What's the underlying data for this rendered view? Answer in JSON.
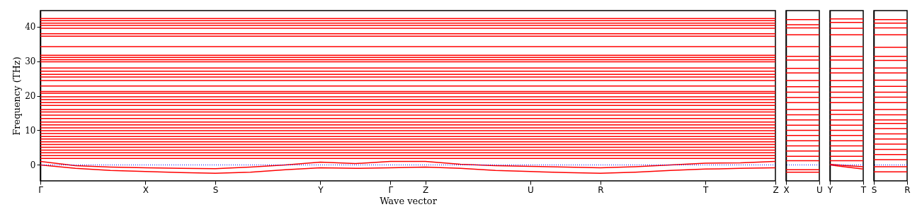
{
  "chart_data": [
    {
      "type": "line",
      "ylabel": "Frequency (THz)",
      "xlabel": "Wave vector",
      "ylim": [
        -4.6,
        44.6
      ],
      "yticks": [
        0,
        10,
        20,
        30,
        40
      ],
      "categories": [
        "Γ",
        null,
        null,
        "X",
        null,
        "S",
        null,
        null,
        "Y",
        null,
        "Γ",
        "Z",
        null,
        null,
        "U",
        null,
        "R",
        null,
        null,
        "T",
        null,
        "Z"
      ],
      "ref_lines": [
        {
          "axis": "y",
          "value": 0,
          "color": "#0000ff",
          "line_style": "dotted"
        }
      ],
      "series": [
        {
          "color": "#ff0000",
          "values": [
            0,
            -1.0,
            -1.6,
            -1.9,
            -2.2,
            -2.4,
            -2.1,
            -1.4,
            -0.8,
            -1.0,
            -0.8,
            -0.6,
            -1.0,
            -1.6,
            -1.9,
            -2.2,
            -2.4,
            -2.1,
            -1.6,
            -1.2,
            -1.0,
            -0.8
          ]
        },
        {
          "color": "#ff0000",
          "values": [
            1.0,
            -0.2,
            -0.6,
            -0.8,
            -1.0,
            -1.1,
            -0.6,
            0,
            0.8,
            0.4,
            1.0,
            1.0,
            0.2,
            -0.2,
            -0.4,
            -0.6,
            -0.8,
            -0.5,
            0,
            0.5,
            0.6,
            1.0
          ]
        },
        {
          "color": "#ff0000",
          "values": [
            42.3,
            42.3,
            42.3,
            42.3,
            42.3,
            42.3,
            42.3,
            42.3,
            42.3,
            42.3,
            42.3,
            42.3,
            42.3,
            42.3,
            42.3,
            42.3,
            42.3,
            42.3,
            42.3,
            42.3,
            42.3,
            42.3
          ]
        },
        {
          "color": "#ff0000",
          "values": [
            41.7,
            41.7,
            41.7,
            41.7,
            41.7,
            41.7,
            41.7,
            41.7,
            41.7,
            41.7,
            41.7,
            41.7,
            41.7,
            41.7,
            41.7,
            41.7,
            41.7,
            41.7,
            41.7,
            41.7,
            41.7,
            41.7
          ]
        },
        {
          "color": "#ff0000",
          "values": [
            41.0,
            41.0,
            41.0,
            41.0,
            41.0,
            41.0,
            41.0,
            41.0,
            41.0,
            41.0,
            41.0,
            41.0,
            41.0,
            41.0,
            41.0,
            41.0,
            41.0,
            41.0,
            41.0,
            41.0,
            41.0,
            41.0
          ]
        },
        {
          "color": "#ff0000",
          "values": [
            40.3,
            40.3,
            40.3,
            40.3,
            40.3,
            40.3,
            40.3,
            40.3,
            40.3,
            40.3,
            40.3,
            40.3,
            40.3,
            40.3,
            40.3,
            40.3,
            40.3,
            40.3,
            40.3,
            40.3,
            40.3,
            40.3
          ]
        },
        {
          "color": "#ff0000",
          "values": [
            39.5,
            39.5,
            39.5,
            39.5,
            39.5,
            39.5,
            39.5,
            39.5,
            39.5,
            39.5,
            39.5,
            39.5,
            39.5,
            39.5,
            39.5,
            39.5,
            39.5,
            39.5,
            39.5,
            39.5,
            39.5,
            39.5
          ]
        },
        {
          "color": "#ff0000",
          "values": [
            37.9,
            37.9,
            37.9,
            37.9,
            37.9,
            37.9,
            37.9,
            37.9,
            37.9,
            37.9,
            37.9,
            37.9,
            37.9,
            37.9,
            37.9,
            37.9,
            37.9,
            37.9,
            37.9,
            37.9,
            37.9,
            37.9
          ]
        },
        {
          "color": "#ff0000",
          "values": [
            37.2,
            37.2,
            37.2,
            37.2,
            37.2,
            37.2,
            37.2,
            37.2,
            37.2,
            37.2,
            37.2,
            37.2,
            37.2,
            37.2,
            37.2,
            37.2,
            37.2,
            37.2,
            37.2,
            37.2,
            37.2,
            37.2
          ]
        },
        {
          "color": "#ff0000",
          "values": [
            34.2,
            34.2,
            34.2,
            34.2,
            34.2,
            34.2,
            34.2,
            34.2,
            34.2,
            34.2,
            34.2,
            34.2,
            34.2,
            34.2,
            34.2,
            34.2,
            34.2,
            34.2,
            34.2,
            34.2,
            34.2,
            34.2
          ]
        },
        {
          "color": "#ff0000",
          "values": [
            31.7,
            31.7,
            31.7,
            31.7,
            31.7,
            31.7,
            31.7,
            31.7,
            31.7,
            31.7,
            31.7,
            31.7,
            31.7,
            31.7,
            31.7,
            31.7,
            31.7,
            31.7,
            31.7,
            31.7,
            31.7,
            31.7
          ]
        },
        {
          "color": "#ff0000",
          "values": [
            31.1,
            31.1,
            31.1,
            31.1,
            31.1,
            31.1,
            31.1,
            31.1,
            31.1,
            31.1,
            31.1,
            31.1,
            31.1,
            31.1,
            31.1,
            31.1,
            31.1,
            31.1,
            31.1,
            31.1,
            31.1,
            31.1
          ]
        },
        {
          "color": "#ff0000",
          "values": [
            30.4,
            30.4,
            30.4,
            30.4,
            30.4,
            30.4,
            30.4,
            30.4,
            30.4,
            30.4,
            30.4,
            30.4,
            30.4,
            30.4,
            30.4,
            30.4,
            30.4,
            30.4,
            30.4,
            30.4,
            30.4,
            30.4
          ]
        },
        {
          "color": "#ff0000",
          "values": [
            29.8,
            29.8,
            29.8,
            29.8,
            29.8,
            29.8,
            29.8,
            29.8,
            29.8,
            29.8,
            29.8,
            29.8,
            29.8,
            29.8,
            29.8,
            29.8,
            29.8,
            29.8,
            29.8,
            29.8,
            29.8,
            29.8
          ]
        },
        {
          "color": "#ff0000",
          "values": [
            28.0,
            28.0,
            28.0,
            28.0,
            28.0,
            28.0,
            28.0,
            28.0,
            28.0,
            28.0,
            28.0,
            28.0,
            28.0,
            28.0,
            28.0,
            28.0,
            28.0,
            28.0,
            28.0,
            28.0,
            28.0,
            28.0
          ]
        },
        {
          "color": "#ff0000",
          "values": [
            27.1,
            27.1,
            27.1,
            27.1,
            27.1,
            27.1,
            27.1,
            27.1,
            27.1,
            27.1,
            27.1,
            27.1,
            27.1,
            27.1,
            27.1,
            27.1,
            27.1,
            27.1,
            27.1,
            27.1,
            27.1,
            27.1
          ]
        },
        {
          "color": "#ff0000",
          "values": [
            26.2,
            26.2,
            26.2,
            26.2,
            26.2,
            26.2,
            26.2,
            26.2,
            26.2,
            26.2,
            26.2,
            26.2,
            26.2,
            26.2,
            26.2,
            26.2,
            26.2,
            26.2,
            26.2,
            26.2,
            26.2,
            26.2
          ]
        },
        {
          "color": "#ff0000",
          "values": [
            25.4,
            25.4,
            25.4,
            25.4,
            25.4,
            25.4,
            25.4,
            25.4,
            25.4,
            25.4,
            25.4,
            25.4,
            25.4,
            25.4,
            25.4,
            25.4,
            25.4,
            25.4,
            25.4,
            25.4,
            25.4,
            25.4
          ]
        },
        {
          "color": "#ff0000",
          "values": [
            24.4,
            24.4,
            24.4,
            24.4,
            24.4,
            24.4,
            24.4,
            24.4,
            24.4,
            24.4,
            24.4,
            24.4,
            24.4,
            24.4,
            24.4,
            24.4,
            24.4,
            24.4,
            24.4,
            24.4,
            24.4,
            24.4
          ]
        },
        {
          "color": "#ff0000",
          "values": [
            22.8,
            22.8,
            22.8,
            22.8,
            22.8,
            22.8,
            22.8,
            22.8,
            22.8,
            22.8,
            22.8,
            22.8,
            22.8,
            22.8,
            22.8,
            22.8,
            22.8,
            22.8,
            22.8,
            22.8,
            22.8,
            22.8
          ]
        },
        {
          "color": "#ff0000",
          "values": [
            21.2,
            21.2,
            21.2,
            21.2,
            21.2,
            21.2,
            21.2,
            21.2,
            21.2,
            21.2,
            21.2,
            21.2,
            21.2,
            21.2,
            21.2,
            21.2,
            21.2,
            21.2,
            21.2,
            21.2,
            21.2,
            21.2
          ]
        },
        {
          "color": "#ff0000",
          "values": [
            20.7,
            20.7,
            20.7,
            20.7,
            20.7,
            20.7,
            20.7,
            20.7,
            20.7,
            20.7,
            20.7,
            20.7,
            20.7,
            20.7,
            20.7,
            20.7,
            20.7,
            20.7,
            20.7,
            20.7,
            20.7,
            20.7
          ]
        },
        {
          "color": "#ff0000",
          "values": [
            19.7,
            19.7,
            19.7,
            19.7,
            19.7,
            19.7,
            19.7,
            19.7,
            19.7,
            19.7,
            19.7,
            19.7,
            19.7,
            19.7,
            19.7,
            19.7,
            19.7,
            19.7,
            19.7,
            19.7,
            19.7,
            19.7
          ]
        },
        {
          "color": "#ff0000",
          "values": [
            18.9,
            18.9,
            18.9,
            18.9,
            18.9,
            18.9,
            18.9,
            18.9,
            18.9,
            18.9,
            18.9,
            18.9,
            18.9,
            18.9,
            18.9,
            18.9,
            18.9,
            18.9,
            18.9,
            18.9,
            18.9,
            18.9
          ]
        },
        {
          "color": "#ff0000",
          "values": [
            18.0,
            18.0,
            18.0,
            18.0,
            18.0,
            18.0,
            18.0,
            18.0,
            18.0,
            18.0,
            18.0,
            18.0,
            18.0,
            18.0,
            18.0,
            18.0,
            18.0,
            18.0,
            18.0,
            18.0,
            18.0,
            18.0
          ]
        },
        {
          "color": "#ff0000",
          "values": [
            17.2,
            17.2,
            17.2,
            17.2,
            17.2,
            17.2,
            17.2,
            17.2,
            17.2,
            17.2,
            17.2,
            17.2,
            17.2,
            17.2,
            17.2,
            17.2,
            17.2,
            17.2,
            17.2,
            17.2,
            17.2,
            17.2
          ]
        },
        {
          "color": "#ff0000",
          "values": [
            16.0,
            16.0,
            16.0,
            16.0,
            16.0,
            16.0,
            16.0,
            16.0,
            16.0,
            16.0,
            16.0,
            16.0,
            16.0,
            16.0,
            16.0,
            16.0,
            16.0,
            16.0,
            16.0,
            16.0,
            16.0,
            16.0
          ]
        },
        {
          "color": "#ff0000",
          "values": [
            15.3,
            15.3,
            15.3,
            15.3,
            15.3,
            15.3,
            15.3,
            15.3,
            15.3,
            15.3,
            15.3,
            15.3,
            15.3,
            15.3,
            15.3,
            15.3,
            15.3,
            15.3,
            15.3,
            15.3,
            15.3,
            15.3
          ]
        },
        {
          "color": "#ff0000",
          "values": [
            14.4,
            14.4,
            14.4,
            14.4,
            14.4,
            14.4,
            14.4,
            14.4,
            14.4,
            14.4,
            14.4,
            14.4,
            14.4,
            14.4,
            14.4,
            14.4,
            14.4,
            14.4,
            14.4,
            14.4,
            14.4,
            14.4
          ]
        },
        {
          "color": "#ff0000",
          "values": [
            13.4,
            13.4,
            13.4,
            13.4,
            13.4,
            13.4,
            13.4,
            13.4,
            13.4,
            13.4,
            13.4,
            13.4,
            13.4,
            13.4,
            13.4,
            13.4,
            13.4,
            13.4,
            13.4,
            13.4,
            13.4,
            13.4
          ]
        },
        {
          "color": "#ff0000",
          "values": [
            12.4,
            12.4,
            12.4,
            12.4,
            12.4,
            12.4,
            12.4,
            12.4,
            12.4,
            12.4,
            12.4,
            12.4,
            12.4,
            12.4,
            12.4,
            12.4,
            12.4,
            12.4,
            12.4,
            12.4,
            12.4,
            12.4
          ]
        },
        {
          "color": "#ff0000",
          "values": [
            11.6,
            11.6,
            11.6,
            11.6,
            11.6,
            11.6,
            11.6,
            11.6,
            11.6,
            11.6,
            11.6,
            11.6,
            11.6,
            11.6,
            11.6,
            11.6,
            11.6,
            11.6,
            11.6,
            11.6,
            11.6,
            11.6
          ]
        },
        {
          "color": "#ff0000",
          "values": [
            10.7,
            10.7,
            10.7,
            10.7,
            10.7,
            10.7,
            10.7,
            10.7,
            10.7,
            10.7,
            10.7,
            10.7,
            10.7,
            10.7,
            10.7,
            10.7,
            10.7,
            10.7,
            10.7,
            10.7,
            10.7,
            10.7
          ]
        },
        {
          "color": "#ff0000",
          "values": [
            9.9,
            9.9,
            9.9,
            9.9,
            9.9,
            9.9,
            9.9,
            9.9,
            9.9,
            9.9,
            9.9,
            9.9,
            9.9,
            9.9,
            9.9,
            9.9,
            9.9,
            9.9,
            9.9,
            9.9,
            9.9,
            9.9
          ]
        },
        {
          "color": "#ff0000",
          "values": [
            9.1,
            9.1,
            9.1,
            9.1,
            9.1,
            9.1,
            9.1,
            9.1,
            9.1,
            9.1,
            9.1,
            9.1,
            9.1,
            9.1,
            9.1,
            9.1,
            9.1,
            9.1,
            9.1,
            9.1,
            9.1,
            9.1
          ]
        },
        {
          "color": "#ff0000",
          "values": [
            8.2,
            8.2,
            8.2,
            8.2,
            8.2,
            8.2,
            8.2,
            8.2,
            8.2,
            8.2,
            8.2,
            8.2,
            8.2,
            8.2,
            8.2,
            8.2,
            8.2,
            8.2,
            8.2,
            8.2,
            8.2,
            8.2
          ]
        },
        {
          "color": "#ff0000",
          "values": [
            7.5,
            7.5,
            7.5,
            7.5,
            7.5,
            7.5,
            7.5,
            7.5,
            7.5,
            7.5,
            7.5,
            7.5,
            7.5,
            7.5,
            7.5,
            7.5,
            7.5,
            7.5,
            7.5,
            7.5,
            7.5,
            7.5
          ]
        },
        {
          "color": "#ff0000",
          "values": [
            6.7,
            6.7,
            6.7,
            6.7,
            6.7,
            6.7,
            6.7,
            6.7,
            6.7,
            6.7,
            6.7,
            6.7,
            6.7,
            6.7,
            6.7,
            6.7,
            6.7,
            6.7,
            6.7,
            6.7,
            6.7,
            6.7
          ]
        },
        {
          "color": "#ff0000",
          "values": [
            5.9,
            5.9,
            5.9,
            5.9,
            5.9,
            5.9,
            5.9,
            5.9,
            5.9,
            5.9,
            5.9,
            5.9,
            5.9,
            5.9,
            5.9,
            5.9,
            5.9,
            5.9,
            5.9,
            5.9,
            5.9,
            5.9
          ]
        },
        {
          "color": "#ff0000",
          "values": [
            5.1,
            5.1,
            5.1,
            5.1,
            5.1,
            5.1,
            5.1,
            5.1,
            5.1,
            5.1,
            5.1,
            5.1,
            5.1,
            5.1,
            5.1,
            5.1,
            5.1,
            5.1,
            5.1,
            5.1,
            5.1,
            5.1
          ]
        },
        {
          "color": "#ff0000",
          "values": [
            4.3,
            4.3,
            4.3,
            4.3,
            4.3,
            4.3,
            4.3,
            4.3,
            4.3,
            4.3,
            4.3,
            4.3,
            4.3,
            4.3,
            4.3,
            4.3,
            4.3,
            4.3,
            4.3,
            4.3,
            4.3,
            4.3
          ]
        },
        {
          "color": "#ff0000",
          "values": [
            3.5,
            3.5,
            3.5,
            3.5,
            3.5,
            3.5,
            3.5,
            3.5,
            3.5,
            3.5,
            3.5,
            3.5,
            3.5,
            3.5,
            3.5,
            3.5,
            3.5,
            3.5,
            3.5,
            3.5,
            3.5,
            3.5
          ]
        },
        {
          "color": "#ff0000",
          "values": [
            2.7,
            2.7,
            2.7,
            2.7,
            2.7,
            2.7,
            2.7,
            2.7,
            2.7,
            2.7,
            2.7,
            2.7,
            2.7,
            2.7,
            2.7,
            2.7,
            2.7,
            2.7,
            2.7,
            2.7,
            2.7,
            2.7
          ]
        },
        {
          "color": "#ff0000",
          "values": [
            1.9,
            1.9,
            1.9,
            1.9,
            1.9,
            1.9,
            1.9,
            1.9,
            1.9,
            1.9,
            1.9,
            1.9,
            1.9,
            1.9,
            1.9,
            1.9,
            1.9,
            1.9,
            1.9,
            1.9,
            1.9,
            1.9
          ]
        }
      ]
    },
    {
      "type": "line",
      "tick_labels": "x",
      "categories": [
        "X",
        "U"
      ],
      "ylim": [
        -4.6,
        44.6
      ],
      "yticks": [
        0,
        10,
        20,
        30,
        40
      ],
      "ref_lines": [
        {
          "axis": "y",
          "value": 0,
          "color": "#0000ff",
          "line_style": "dotted"
        }
      ],
      "series": [
        {
          "color": "#ff0000",
          "values": [
            42.0,
            42.0
          ]
        },
        {
          "color": "#ff0000",
          "values": [
            40.5,
            40.5
          ]
        },
        {
          "color": "#ff0000",
          "values": [
            39.6,
            39.6
          ]
        },
        {
          "color": "#ff0000",
          "values": [
            37.6,
            37.6
          ]
        },
        {
          "color": "#ff0000",
          "values": [
            34.2,
            34.2
          ]
        },
        {
          "color": "#ff0000",
          "values": [
            31.4,
            31.4
          ]
        },
        {
          "color": "#ff0000",
          "values": [
            30.3,
            30.3
          ]
        },
        {
          "color": "#ff0000",
          "values": [
            27.9,
            27.9
          ]
        },
        {
          "color": "#ff0000",
          "values": [
            26.6,
            26.6
          ]
        },
        {
          "color": "#ff0000",
          "values": [
            24.4,
            24.4
          ]
        },
        {
          "color": "#ff0000",
          "values": [
            22.6,
            22.6
          ]
        },
        {
          "color": "#ff0000",
          "values": [
            21.0,
            21.0
          ]
        },
        {
          "color": "#ff0000",
          "values": [
            19.5,
            19.5
          ]
        },
        {
          "color": "#ff0000",
          "values": [
            18.0,
            18.0
          ]
        },
        {
          "color": "#ff0000",
          "values": [
            16.0,
            16.0
          ]
        },
        {
          "color": "#ff0000",
          "values": [
            14.5,
            14.5
          ]
        },
        {
          "color": "#ff0000",
          "values": [
            13.0,
            13.0
          ]
        },
        {
          "color": "#ff0000",
          "values": [
            11.5,
            11.5
          ]
        },
        {
          "color": "#ff0000",
          "values": [
            10.0,
            10.0
          ]
        },
        {
          "color": "#ff0000",
          "values": [
            8.5,
            8.5
          ]
        },
        {
          "color": "#ff0000",
          "values": [
            7.0,
            7.0
          ]
        },
        {
          "color": "#ff0000",
          "values": [
            5.5,
            5.5
          ]
        },
        {
          "color": "#ff0000",
          "values": [
            4.0,
            4.0
          ]
        },
        {
          "color": "#ff0000",
          "values": [
            2.5,
            2.5
          ]
        },
        {
          "color": "#ff0000",
          "values": [
            1.2,
            1.2
          ]
        },
        {
          "color": "#ff0000",
          "values": [
            -1.4,
            -1.4
          ]
        },
        {
          "color": "#ff0000",
          "values": [
            -2.1,
            -2.1
          ]
        }
      ]
    },
    {
      "type": "line",
      "tick_labels": "x",
      "categories": [
        "Y",
        null,
        "T"
      ],
      "ylim": [
        -4.6,
        44.6
      ],
      "yticks": [
        0,
        10,
        20,
        30,
        40
      ],
      "ref_lines": [
        {
          "axis": "y",
          "value": 0,
          "color": "#0000ff",
          "line_style": "dotted"
        }
      ],
      "series": [
        {
          "color": "#ff0000",
          "values": [
            42.2,
            42.2,
            42.2
          ]
        },
        {
          "color": "#ff0000",
          "values": [
            41.2,
            41.2,
            41.2
          ]
        },
        {
          "color": "#ff0000",
          "values": [
            39.5,
            39.5,
            39.5
          ]
        },
        {
          "color": "#ff0000",
          "values": [
            37.6,
            37.6,
            37.6
          ]
        },
        {
          "color": "#ff0000",
          "values": [
            34.2,
            34.2,
            34.2
          ]
        },
        {
          "color": "#ff0000",
          "values": [
            31.4,
            31.4,
            31.4
          ]
        },
        {
          "color": "#ff0000",
          "values": [
            30.3,
            30.3,
            30.3
          ]
        },
        {
          "color": "#ff0000",
          "values": [
            27.9,
            27.9,
            27.9
          ]
        },
        {
          "color": "#ff0000",
          "values": [
            26.6,
            26.6,
            26.6
          ]
        },
        {
          "color": "#ff0000",
          "values": [
            24.4,
            24.4,
            24.4
          ]
        },
        {
          "color": "#ff0000",
          "values": [
            22.6,
            22.6,
            22.6
          ]
        },
        {
          "color": "#ff0000",
          "values": [
            21.0,
            21.0,
            21.0
          ]
        },
        {
          "color": "#ff0000",
          "values": [
            19.5,
            19.5,
            19.5
          ]
        },
        {
          "color": "#ff0000",
          "values": [
            18.0,
            18.0,
            18.0
          ]
        },
        {
          "color": "#ff0000",
          "values": [
            15.8,
            15.8,
            15.8
          ]
        },
        {
          "color": "#ff0000",
          "values": [
            14.6,
            14.6,
            14.6
          ]
        },
        {
          "color": "#ff0000",
          "values": [
            13.0,
            13.0,
            13.0
          ]
        },
        {
          "color": "#ff0000",
          "values": [
            11.5,
            11.5,
            11.5
          ]
        },
        {
          "color": "#ff0000",
          "values": [
            10.0,
            10.0,
            10.0
          ]
        },
        {
          "color": "#ff0000",
          "values": [
            8.5,
            8.5,
            8.5
          ]
        },
        {
          "color": "#ff0000",
          "values": [
            7.0,
            7.0,
            7.0
          ]
        },
        {
          "color": "#ff0000",
          "values": [
            5.5,
            5.5,
            5.5
          ]
        },
        {
          "color": "#ff0000",
          "values": [
            4.0,
            4.0,
            4.0
          ]
        },
        {
          "color": "#ff0000",
          "values": [
            2.5,
            2.5,
            2.5
          ]
        },
        {
          "color": "#ff0000",
          "values": [
            1.2,
            1.2,
            1.2
          ]
        },
        {
          "color": "#ff0000",
          "values": [
            0,
            -0.6,
            -1.2
          ]
        },
        {
          "color": "#ff0000",
          "values": [
            0.2,
            -0.2,
            -0.5
          ]
        }
      ]
    },
    {
      "type": "line",
      "tick_labels": "x",
      "categories": [
        "S",
        "R"
      ],
      "ylim": [
        -4.6,
        44.6
      ],
      "yticks": [
        0,
        10,
        20,
        30,
        40
      ],
      "ref_lines": [
        {
          "axis": "y",
          "value": 0,
          "color": "#0000ff",
          "line_style": "dotted"
        }
      ],
      "series": [
        {
          "color": "#ff0000",
          "values": [
            42.0,
            42.0
          ]
        },
        {
          "color": "#ff0000",
          "values": [
            41.0,
            41.0
          ]
        },
        {
          "color": "#ff0000",
          "values": [
            39.6,
            39.6
          ]
        },
        {
          "color": "#ff0000",
          "values": [
            37.6,
            37.6
          ]
        },
        {
          "color": "#ff0000",
          "values": [
            34.0,
            34.0
          ]
        },
        {
          "color": "#ff0000",
          "values": [
            31.4,
            31.4
          ]
        },
        {
          "color": "#ff0000",
          "values": [
            30.2,
            30.2
          ]
        },
        {
          "color": "#ff0000",
          "values": [
            28.0,
            28.0
          ]
        },
        {
          "color": "#ff0000",
          "values": [
            26.6,
            26.6
          ]
        },
        {
          "color": "#ff0000",
          "values": [
            24.5,
            24.5
          ]
        },
        {
          "color": "#ff0000",
          "values": [
            22.7,
            22.7
          ]
        },
        {
          "color": "#ff0000",
          "values": [
            21.0,
            21.0
          ]
        },
        {
          "color": "#ff0000",
          "values": [
            19.6,
            19.6
          ]
        },
        {
          "color": "#ff0000",
          "values": [
            18.0,
            18.0
          ]
        },
        {
          "color": "#ff0000",
          "values": [
            16.0,
            16.0
          ]
        },
        {
          "color": "#ff0000",
          "values": [
            14.5,
            14.5
          ]
        },
        {
          "color": "#ff0000",
          "values": [
            13.0,
            13.0
          ]
        },
        {
          "color": "#ff0000",
          "values": [
            12.0,
            12.0
          ]
        },
        {
          "color": "#ff0000",
          "values": [
            10.5,
            10.5
          ]
        },
        {
          "color": "#ff0000",
          "values": [
            9.0,
            9.0
          ]
        },
        {
          "color": "#ff0000",
          "values": [
            7.5,
            7.5
          ]
        },
        {
          "color": "#ff0000",
          "values": [
            6.0,
            6.0
          ]
        },
        {
          "color": "#ff0000",
          "values": [
            4.5,
            4.5
          ]
        },
        {
          "color": "#ff0000",
          "values": [
            3.0,
            3.0
          ]
        },
        {
          "color": "#ff0000",
          "values": [
            1.5,
            1.5
          ]
        },
        {
          "color": "#ff0000",
          "values": [
            -0.5,
            -0.5
          ]
        },
        {
          "color": "#ff0000",
          "values": [
            -2.0,
            -2.0
          ]
        }
      ]
    }
  ]
}
